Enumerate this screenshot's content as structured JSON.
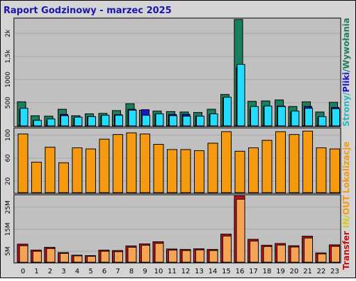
{
  "window": {
    "title": "Raport Godzinowy -  marzec 2025"
  },
  "colors": {
    "bg": "#d4d4d4",
    "panel": "#c0c0c0",
    "title": "#1a14b0",
    "stroke": "#000000",
    "pages": "#1a7f5e",
    "files": "#1515d0",
    "hits": "#22ddff",
    "visits_rank": "#f59a0f",
    "bytes_in": "#c81010",
    "bytes_out": "#f5a355",
    "side_label_hits": "#22bbbb",
    "side_label_files": "#1515d0",
    "side_label_pages": "#1a7f5e",
    "side_label_visits": "#f59a0f",
    "side_label_transfer": "#c81010",
    "side_label_in": "#cfcf20",
    "side_label_out": "#f59a0f"
  },
  "side_labels": {
    "pages": "Strony",
    "sep1": "/",
    "files": "Pliki",
    "sep2": "/",
    "hits": "Wywołania",
    "visits": "Lokalizacje",
    "transfer": "Transfer",
    "in": "IN",
    "out": "OUT",
    "sep3": "/"
  },
  "chart_data": [
    {
      "type": "bar",
      "name": "hits-files-pages",
      "categories": [
        "0",
        "1",
        "2",
        "3",
        "4",
        "5",
        "6",
        "7",
        "8",
        "9",
        "10",
        "11",
        "12",
        "13",
        "14",
        "15",
        "16",
        "17",
        "18",
        "19",
        "20",
        "21",
        "22",
        "23"
      ],
      "ytick_labels": [
        "500",
        "1000",
        "1,5k",
        "2k"
      ],
      "ytick_values": [
        500,
        1000,
        1500,
        2000
      ],
      "ylim": [
        0,
        2300
      ],
      "series": [
        {
          "key": "pages",
          "values": [
            520,
            220,
            210,
            360,
            220,
            260,
            270,
            330,
            480,
            340,
            320,
            310,
            300,
            290,
            360,
            680,
            2300,
            530,
            540,
            560,
            420,
            520,
            300,
            510
          ]
        },
        {
          "key": "files",
          "values": [
            350,
            120,
            110,
            250,
            160,
            200,
            210,
            240,
            360,
            350,
            250,
            250,
            250,
            210,
            250,
            610,
            1260,
            370,
            420,
            430,
            300,
            420,
            180,
            400
          ]
        },
        {
          "key": "hits",
          "values": [
            380,
            120,
            150,
            220,
            190,
            200,
            230,
            230,
            340,
            230,
            260,
            220,
            210,
            210,
            260,
            620,
            1330,
            420,
            430,
            420,
            320,
            380,
            200,
            370
          ]
        }
      ]
    },
    {
      "type": "bar",
      "name": "visits",
      "categories": [
        "0",
        "1",
        "2",
        "3",
        "4",
        "5",
        "6",
        "7",
        "8",
        "9",
        "10",
        "11",
        "12",
        "13",
        "14",
        "15",
        "16",
        "17",
        "18",
        "19",
        "20",
        "21",
        "22",
        "23"
      ],
      "ytick_labels": [
        "20",
        "60",
        "100"
      ],
      "ytick_values": [
        20,
        60,
        100
      ],
      "ylim": [
        0,
        110
      ],
      "series": [
        {
          "key": "visits",
          "values": [
            102,
            53,
            79,
            52,
            78,
            76,
            93,
            101,
            104,
            102,
            84,
            75,
            75,
            73,
            86,
            106,
            72,
            78,
            91,
            106,
            101,
            107,
            78,
            76
          ]
        }
      ]
    },
    {
      "type": "bar",
      "name": "transfer",
      "categories": [
        "0",
        "1",
        "2",
        "3",
        "4",
        "5",
        "6",
        "7",
        "8",
        "9",
        "10",
        "11",
        "12",
        "13",
        "14",
        "15",
        "16",
        "17",
        "18",
        "19",
        "20",
        "21",
        "22",
        "23"
      ],
      "ytick_labels": [
        "5M",
        "15M",
        "25M"
      ],
      "ytick_values": [
        5,
        15,
        25
      ],
      "ylim": [
        0,
        30
      ],
      "series": [
        {
          "key": "in",
          "values": [
            8.2,
            5.5,
            6.8,
            4.4,
            3.2,
            3.0,
            5.5,
            5.3,
            7.4,
            8.3,
            9.3,
            6.0,
            5.8,
            6.1,
            5.8,
            12.8,
            30.1,
            10.4,
            7.7,
            8.5,
            7.5,
            11.8,
            4.2,
            7.9
          ]
        },
        {
          "key": "out",
          "values": [
            7.5,
            5.0,
            6.2,
            4.0,
            2.9,
            2.7,
            5.0,
            4.8,
            6.8,
            7.7,
            8.6,
            5.5,
            5.3,
            5.6,
            5.3,
            11.9,
            28.6,
            9.6,
            7.1,
            7.8,
            6.9,
            11.0,
            3.8,
            7.2
          ]
        }
      ]
    }
  ]
}
